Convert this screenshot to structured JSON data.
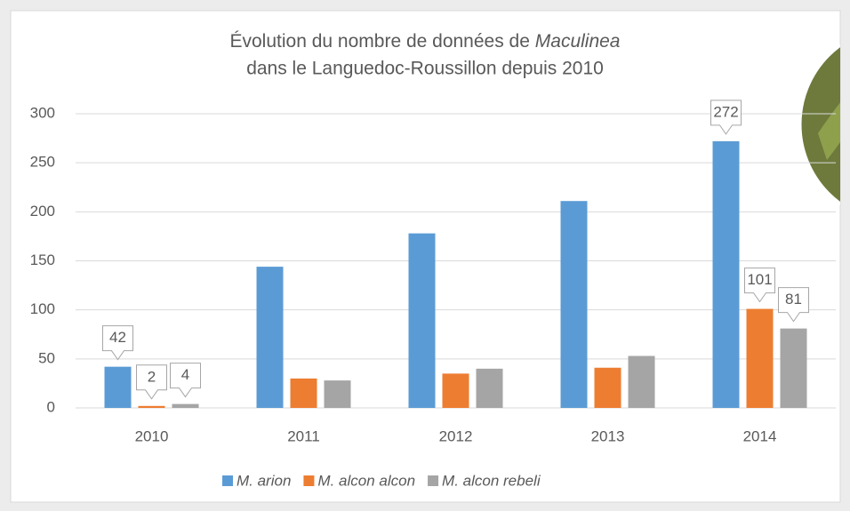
{
  "chart_data": {
    "type": "bar",
    "title": [
      "Évolution du nombre de données de",
      "Maculinea",
      "dans le Languedoc-Roussillon depuis 2010"
    ],
    "categories": [
      "2010",
      "2011",
      "2012",
      "2013",
      "2014"
    ],
    "series": [
      {
        "name": "M. arion",
        "color": "#5b9bd5",
        "values": [
          42,
          144,
          178,
          211,
          272
        ],
        "value_labels": [
          "42",
          null,
          null,
          null,
          "272"
        ]
      },
      {
        "name": "M. alcon alcon",
        "color": "#ed7d31",
        "values": [
          2,
          30,
          35,
          41,
          101
        ],
        "value_labels": [
          "2",
          null,
          null,
          null,
          "101"
        ]
      },
      {
        "name": "M. alcon rebeli",
        "color": "#a5a5a5",
        "values": [
          4,
          28,
          40,
          53,
          81
        ],
        "value_labels": [
          "4",
          null,
          null,
          null,
          "81"
        ]
      }
    ],
    "ylim": [
      0,
      300
    ],
    "yticks": [
      0,
      50,
      100,
      150,
      200,
      250,
      300
    ],
    "grid": true,
    "legend": "bottom"
  }
}
